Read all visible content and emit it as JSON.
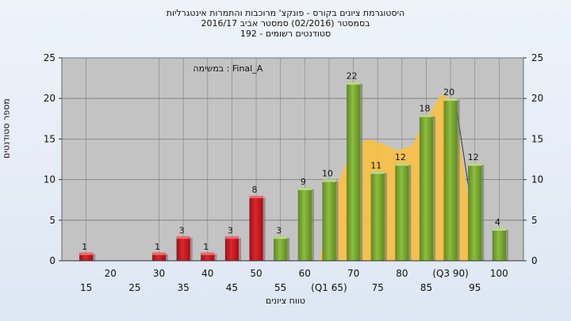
{
  "chart_data": {
    "type": "bar",
    "title_lines": [
      "היסטוגרמת ציונים בקורס - פונקצ' מרוכבות והתמרות אינטגרליות",
      "בסמסטר  (02/2016)  סמסטר אביב 2016/17",
      "סטודנטים רשומים - 192"
    ],
    "annotation": "במשימה : Final_A",
    "xlabel": "טווח ציונים",
    "ylabel": "מספר סטודנטים",
    "ylim": [
      0,
      25
    ],
    "yticks": [
      0,
      5,
      10,
      15,
      20,
      25
    ],
    "grid": true,
    "x_tick_labels": [
      "15",
      "20",
      "25",
      "30",
      "35",
      "40",
      "45",
      "50",
      "55",
      "60",
      "(Q1 65)",
      "70",
      "75",
      "80",
      "85",
      "(Q3 90)",
      "95",
      "100"
    ],
    "bars": [
      {
        "x": 15,
        "value": 1,
        "color": "red"
      },
      {
        "x": 30,
        "value": 1,
        "color": "red"
      },
      {
        "x": 35,
        "value": 3,
        "color": "red"
      },
      {
        "x": 40,
        "value": 1,
        "color": "red"
      },
      {
        "x": 45,
        "value": 3,
        "color": "red"
      },
      {
        "x": 50,
        "value": 8,
        "color": "red"
      },
      {
        "x": 55,
        "value": 3,
        "color": "green"
      },
      {
        "x": 60,
        "value": 9,
        "color": "green"
      },
      {
        "x": 65,
        "value": 10,
        "color": "green"
      },
      {
        "x": 70,
        "value": 22,
        "color": "green"
      },
      {
        "x": 75,
        "value": 11,
        "color": "green"
      },
      {
        "x": 80,
        "value": 12,
        "color": "green"
      },
      {
        "x": 85,
        "value": 18,
        "color": "green"
      },
      {
        "x": 90,
        "value": 20,
        "color": "green"
      },
      {
        "x": 95,
        "value": 12,
        "color": "green"
      },
      {
        "x": 100,
        "value": 4,
        "color": "green"
      }
    ],
    "colors": {
      "fail": "#e0242c",
      "pass": "#8cbd3e",
      "area": "#f7c04a",
      "plot_bg": "#c3c3c3"
    }
  }
}
